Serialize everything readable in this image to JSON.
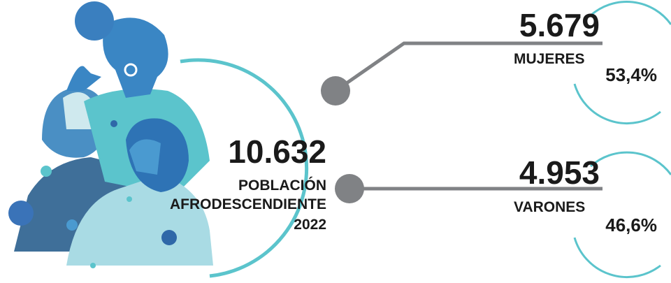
{
  "total": {
    "value": "10.632",
    "lines": [
      "POBLACIÓN",
      "AFRODESCENDIENTE",
      "2022"
    ]
  },
  "groups": [
    {
      "value": "5.679",
      "label": "MUJERES",
      "percent": "53,4%"
    },
    {
      "value": "4.953",
      "label": "VARONES",
      "percent": "46,6%"
    }
  ]
}
